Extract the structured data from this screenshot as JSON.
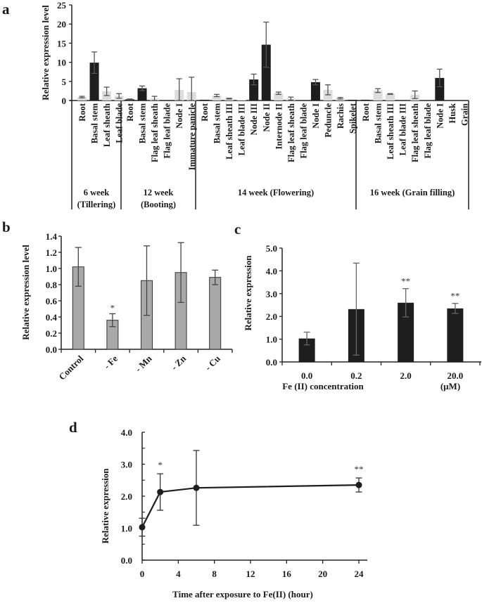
{
  "chart_data": [
    {
      "panel": "a",
      "type": "bar",
      "ylabel": "Relative expression level",
      "xlabel": "",
      "ylim": [
        0,
        25
      ],
      "yticks": [
        "0",
        "5",
        "10",
        "15",
        "20",
        "25"
      ],
      "yticks_values": [
        0,
        5,
        10,
        15,
        20,
        25
      ],
      "colors": {
        "dark": "#1e1e1e",
        "light": "#dcdcdc",
        "error": "#555555"
      },
      "groups": [
        {
          "label_line1": "6 week",
          "label_line2": "(Tillering)",
          "categories": [
            "Root",
            "Basal stem",
            "Leaf sheath",
            "Leaf blade"
          ],
          "values": [
            0.9,
            9.9,
            2.4,
            1.2
          ],
          "errors": [
            0.2,
            2.8,
            1.1,
            0.6
          ],
          "shade": [
            "light",
            "dark",
            "light",
            "light"
          ]
        },
        {
          "label_line1": "12 week",
          "label_line2": "(Booting)",
          "categories": [
            "Root",
            "Basal stem",
            "Flag leaf sheath",
            "Flag leaf blade",
            "Node I",
            "Immature panicle"
          ],
          "values": [
            0.3,
            3.2,
            0.5,
            0.0,
            2.8,
            2.2
          ],
          "errors": [
            0.1,
            0.6,
            0.6,
            0.0,
            2.9,
            3.9
          ],
          "shade": [
            "dark",
            "dark",
            "light",
            "light",
            "light",
            "light"
          ]
        },
        {
          "label_line1": "14 week (Flowering)",
          "label_line2": "",
          "categories": [
            "Root",
            "Basal stem",
            "Leaf sheath III",
            "Leaf blade III",
            "Node III",
            "Node II",
            "Internode II",
            "Flag leaf sheath",
            "Flag leaf blade",
            "Node I",
            "Peduncle",
            "Rachis",
            "Spikelet"
          ],
          "values": [
            0.2,
            1.3,
            0.5,
            0.2,
            5.5,
            14.6,
            1.9,
            0.5,
            0.0,
            4.8,
            2.8,
            0.6,
            0.2
          ],
          "errors": [
            0.05,
            0.3,
            0.1,
            0.05,
            1.4,
            5.9,
            0.3,
            0.4,
            0.0,
            0.7,
            1.3,
            0.2,
            0.05
          ],
          "shade": [
            "dark",
            "light",
            "light",
            "light",
            "dark",
            "dark",
            "light",
            "light",
            "light",
            "dark",
            "light",
            "light",
            "dark"
          ]
        },
        {
          "label_line1": "16 week (Grain filling)",
          "label_line2": "",
          "categories": [
            "Root",
            "Basal stem",
            "Leaf sheath III",
            "Leaf blade III",
            "Flag leaf sheath",
            "Flag leaf blade",
            "Node I",
            "Husk",
            "Grain"
          ],
          "values": [
            0.2,
            2.6,
            1.7,
            0.0,
            1.5,
            0.0,
            5.9,
            0.0,
            0.0
          ],
          "errors": [
            0.05,
            0.5,
            0.1,
            0.0,
            1.0,
            0.0,
            2.3,
            0.0,
            0.0
          ],
          "shade": [
            "dark",
            "light",
            "light",
            "light",
            "light",
            "light",
            "dark",
            "light",
            "light"
          ]
        }
      ]
    },
    {
      "panel": "b",
      "type": "bar",
      "ylabel": "Relative expression level",
      "xlabel": "",
      "ylim": [
        0,
        1.4
      ],
      "yticks": [
        "0.0",
        "0.2",
        "0.4",
        "0.6",
        "0.8",
        "1.0",
        "1.2",
        "1.4"
      ],
      "yticks_values": [
        0,
        0.2,
        0.4,
        0.6,
        0.8,
        1.0,
        1.2,
        1.4
      ],
      "categories": [
        "Control",
        "- Fe",
        "- Mn",
        "- Zn",
        "- Cu"
      ],
      "values": [
        1.02,
        0.36,
        0.85,
        0.95,
        0.89
      ],
      "errors": [
        0.24,
        0.08,
        0.43,
        0.37,
        0.09
      ],
      "annotations": [
        "",
        "*",
        "",
        "",
        ""
      ],
      "color": "#a9a9ad"
    },
    {
      "panel": "c",
      "type": "bar",
      "ylabel": "Relative expression",
      "xlabel": "Fe (II) concentration",
      "xunit": "(μM)",
      "ylim": [
        0,
        5
      ],
      "yticks": [
        "0.0",
        "1.0",
        "2.0",
        "3.0",
        "4.0",
        "5.0"
      ],
      "yticks_values": [
        0,
        1,
        2,
        3,
        4,
        5
      ],
      "categories": [
        "0.0",
        "0.2",
        "2.0",
        "20.0"
      ],
      "values": [
        1.03,
        2.32,
        2.6,
        2.35
      ],
      "errors": [
        0.28,
        2.02,
        0.62,
        0.22
      ],
      "annotations": [
        "",
        "",
        "**",
        "**"
      ],
      "color": "#1e1e1e"
    },
    {
      "panel": "d",
      "type": "line",
      "ylabel": "Relative expression",
      "xlabel": "Time after exposure to Fe(II) (hour)",
      "xlim": [
        0,
        24
      ],
      "ylim": [
        0,
        4
      ],
      "xticks": [
        "0",
        "4",
        "8",
        "12",
        "16",
        "20",
        "24"
      ],
      "xticks_values": [
        0,
        4,
        8,
        12,
        16,
        20,
        24
      ],
      "yticks": [
        "0.0",
        "1.0",
        "2.0",
        "3.0",
        "4.0"
      ],
      "yticks_values": [
        0,
        1,
        2,
        3,
        4
      ],
      "x": [
        0,
        2,
        6,
        24
      ],
      "y": [
        1.03,
        2.13,
        2.26,
        2.35
      ],
      "errors": [
        0.28,
        0.57,
        1.17,
        0.22
      ],
      "annotations": [
        "",
        "*",
        "",
        "**"
      ],
      "color": "#1e1e1e"
    }
  ]
}
